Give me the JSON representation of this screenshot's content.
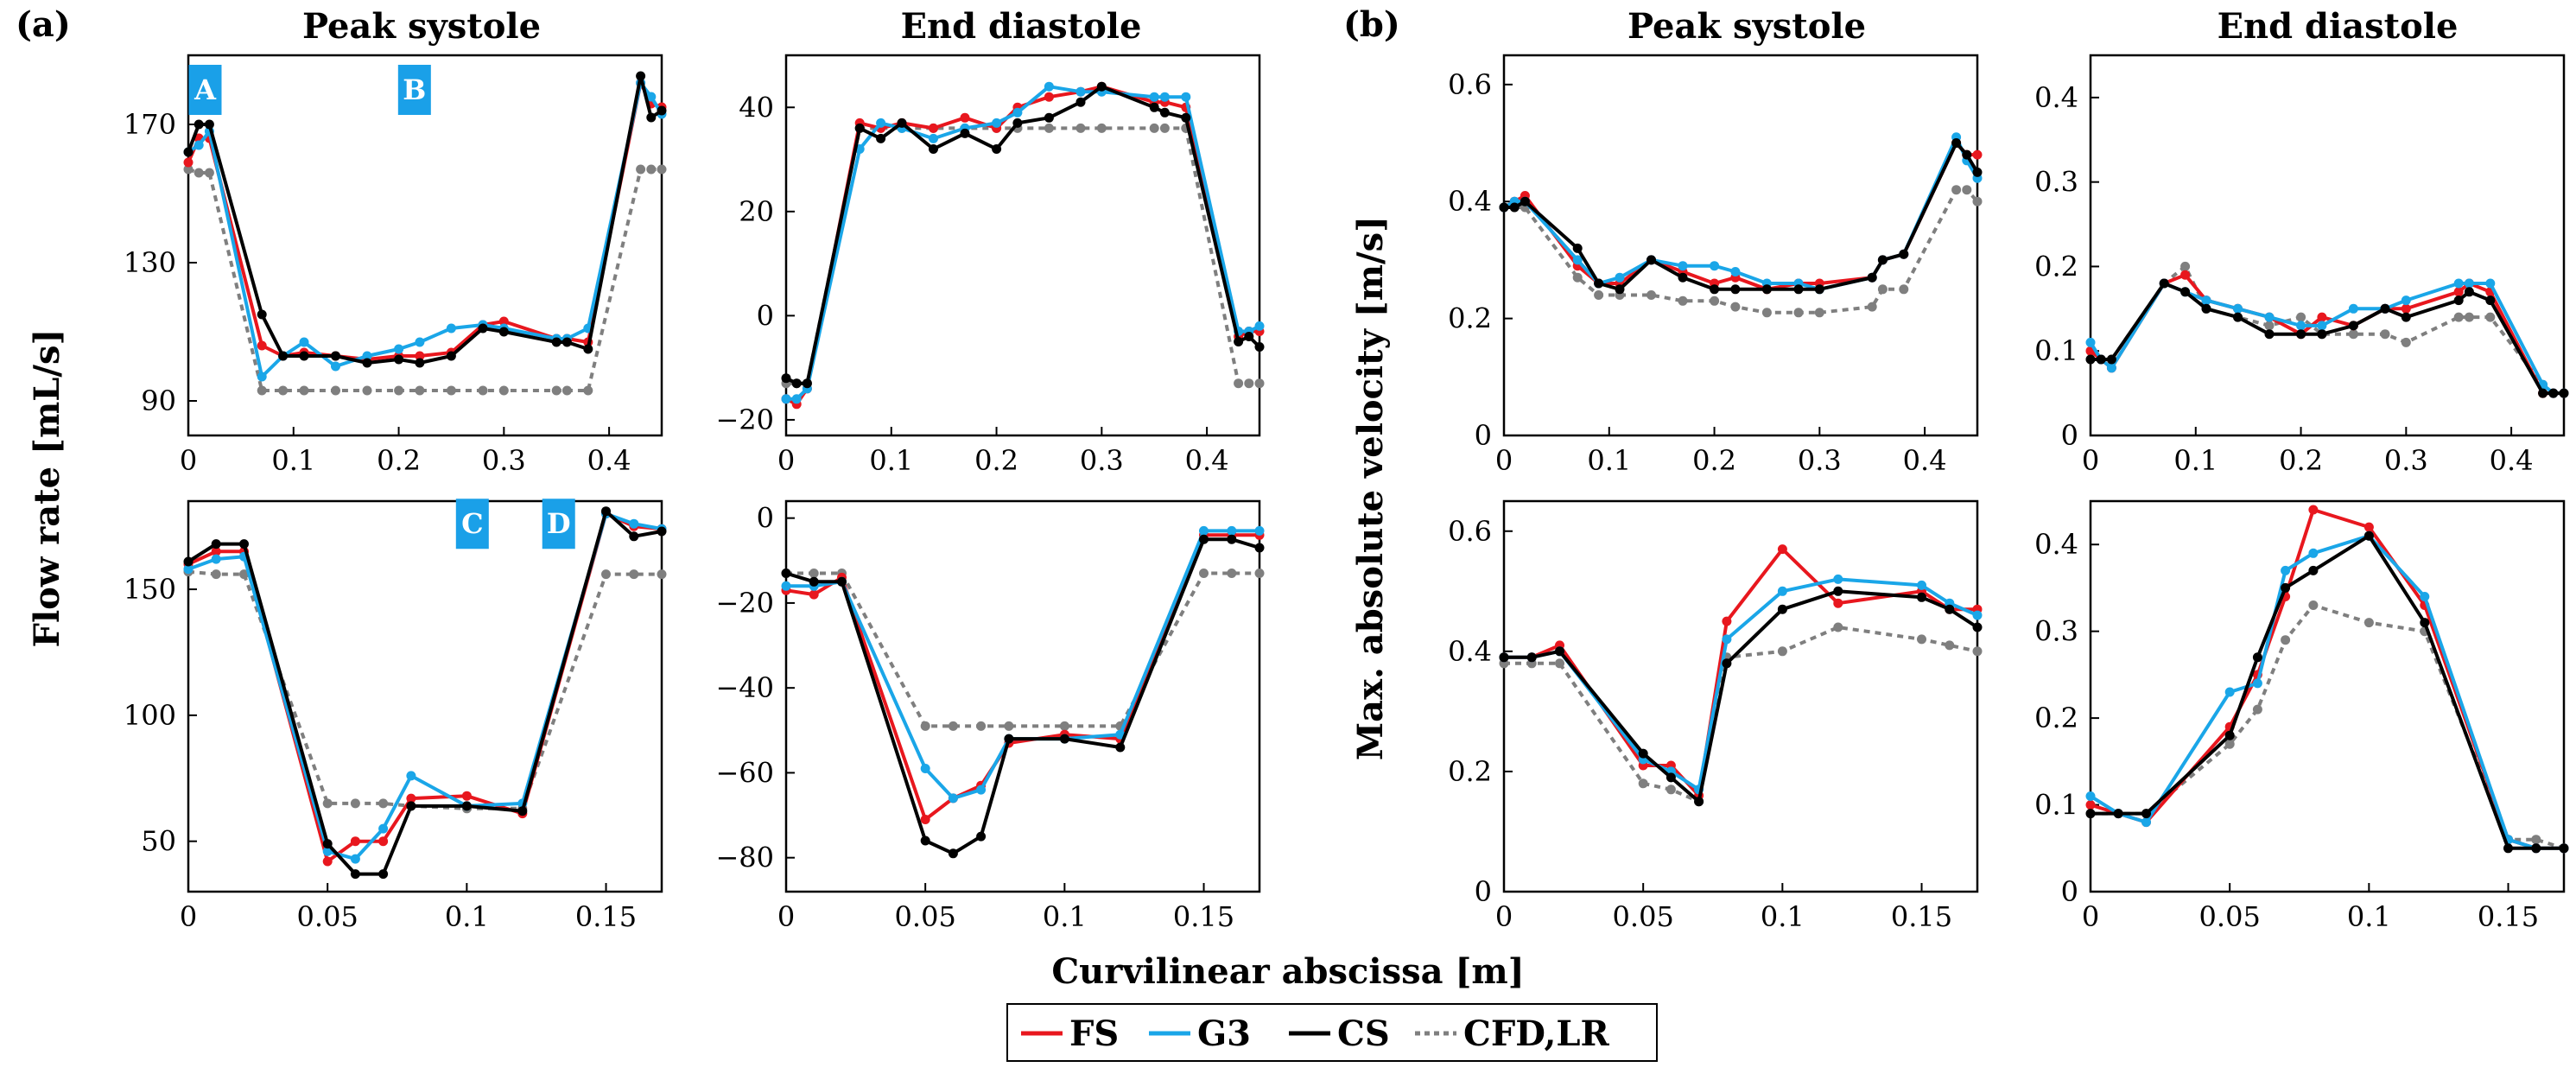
{
  "panel_labels": [
    "(a)",
    "(b)"
  ],
  "col_titles": [
    "Peak systole",
    "End diastole",
    "Peak systole",
    "End diastole"
  ],
  "ylabel_a": "Flow rate [mL/s]",
  "ylabel_b": "Max. absolute velocity [m/s]",
  "xlabel": "Curvilinear abscissa [m]",
  "colors": {
    "FS": "#e8171e",
    "G3": "#1aa6e8",
    "CS": "#000000",
    "CFD,LR": "#7f7f7f",
    "badge": "#1aa0e8"
  },
  "legend": [
    "FS",
    "G3",
    "CS",
    "CFD,LR"
  ],
  "chart_data": [
    {
      "id": "a-ps-top",
      "type": "line",
      "title": "Peak systole",
      "xlim": [
        0,
        0.45
      ],
      "ylim": [
        80,
        190
      ],
      "xticks": [
        0,
        0.1,
        0.2,
        0.3,
        0.4
      ],
      "xtick_labels": [
        "0",
        "0.1",
        "0.2",
        "0.3",
        "0.4"
      ],
      "yticks": [
        90,
        130,
        170
      ],
      "ytick_labels": [
        "90",
        "130",
        "170"
      ],
      "annotations": [
        {
          "text": "A",
          "x": 0.016,
          "y": 180
        },
        {
          "text": "B",
          "x": 0.215,
          "y": 180
        }
      ],
      "x": [
        0,
        0.01,
        0.02,
        0.07,
        0.09,
        0.11,
        0.14,
        0.17,
        0.2,
        0.22,
        0.25,
        0.28,
        0.3,
        0.35,
        0.36,
        0.38,
        0.43,
        0.44,
        0.45
      ],
      "series": [
        {
          "name": "FS",
          "values": [
            159,
            166,
            166,
            106,
            103,
            104,
            103,
            102,
            103,
            103,
            104,
            112,
            113,
            108,
            108,
            107,
            182,
            176,
            175
          ]
        },
        {
          "name": "G3",
          "values": [
            162,
            164,
            168,
            97,
            103,
            107,
            100,
            103,
            105,
            107,
            111,
            112,
            111,
            108,
            108,
            111,
            182,
            178,
            173
          ]
        },
        {
          "name": "CS",
          "values": [
            162,
            170,
            170,
            115,
            103,
            103,
            103,
            101,
            102,
            101,
            103,
            111,
            110,
            107,
            107,
            105,
            184,
            172,
            174
          ]
        },
        {
          "name": "CFD,LR",
          "values": [
            157,
            156,
            156,
            93,
            93,
            93,
            93,
            93,
            93,
            93,
            93,
            93,
            93,
            93,
            93,
            93,
            157,
            157,
            157
          ]
        }
      ]
    },
    {
      "id": "a-ed-top",
      "type": "line",
      "title": "End diastole",
      "xlim": [
        0,
        0.45
      ],
      "ylim": [
        -23,
        50
      ],
      "xticks": [
        0,
        0.1,
        0.2,
        0.3,
        0.4
      ],
      "xtick_labels": [
        "0",
        "0.1",
        "0.2",
        "0.3",
        "0.4"
      ],
      "yticks": [
        -20,
        0,
        20,
        40
      ],
      "ytick_labels": [
        "−20",
        "0",
        "20",
        "40"
      ],
      "x": [
        0,
        0.01,
        0.02,
        0.07,
        0.09,
        0.11,
        0.14,
        0.17,
        0.2,
        0.22,
        0.25,
        0.28,
        0.3,
        0.35,
        0.36,
        0.38,
        0.43,
        0.44,
        0.45
      ],
      "series": [
        {
          "name": "FS",
          "values": [
            -16,
            -17,
            -14,
            37,
            36,
            37,
            36,
            38,
            36,
            40,
            42,
            43,
            44,
            41,
            41,
            40,
            -4,
            -3,
            -3
          ]
        },
        {
          "name": "G3",
          "values": [
            -16,
            -16,
            -14,
            32,
            37,
            36,
            34,
            36,
            37,
            39,
            44,
            43,
            43,
            42,
            42,
            42,
            -3,
            -3,
            -2
          ]
        },
        {
          "name": "CS",
          "values": [
            -12,
            -13,
            -13,
            36,
            34,
            37,
            32,
            35,
            32,
            37,
            38,
            41,
            44,
            40,
            39,
            38,
            -5,
            -4,
            -6
          ]
        },
        {
          "name": "CFD,LR",
          "values": [
            -13,
            -13,
            -13,
            36,
            36,
            36,
            36,
            36,
            36,
            36,
            36,
            36,
            36,
            36,
            36,
            36,
            -13,
            -13,
            -13
          ]
        }
      ]
    },
    {
      "id": "b-ps-top",
      "type": "line",
      "title": "Peak systole",
      "xlim": [
        0,
        0.45
      ],
      "ylim": [
        0,
        0.65
      ],
      "xticks": [
        0,
        0.1,
        0.2,
        0.3,
        0.4
      ],
      "xtick_labels": [
        "0",
        "0.1",
        "0.2",
        "0.3",
        "0.4"
      ],
      "yticks": [
        0,
        0.2,
        0.4,
        0.6
      ],
      "ytick_labels": [
        "0",
        "0.2",
        "0.4",
        "0.6"
      ],
      "x": [
        0,
        0.01,
        0.02,
        0.07,
        0.09,
        0.11,
        0.14,
        0.17,
        0.2,
        0.22,
        0.25,
        0.28,
        0.3,
        0.35,
        0.36,
        0.38,
        0.43,
        0.44,
        0.45
      ],
      "series": [
        {
          "name": "FS",
          "values": [
            0.39,
            0.4,
            0.41,
            0.29,
            0.26,
            0.26,
            0.3,
            0.28,
            0.26,
            0.27,
            0.25,
            0.26,
            0.26,
            0.27,
            0.3,
            0.31,
            0.5,
            0.48,
            0.48
          ]
        },
        {
          "name": "G3",
          "values": [
            0.39,
            0.4,
            0.4,
            0.3,
            0.26,
            0.27,
            0.3,
            0.29,
            0.29,
            0.28,
            0.26,
            0.26,
            0.25,
            0.27,
            0.3,
            0.31,
            0.51,
            0.47,
            0.44
          ]
        },
        {
          "name": "CS",
          "values": [
            0.39,
            0.39,
            0.4,
            0.32,
            0.26,
            0.25,
            0.3,
            0.27,
            0.25,
            0.25,
            0.25,
            0.25,
            0.25,
            0.27,
            0.3,
            0.31,
            0.5,
            0.48,
            0.45
          ]
        },
        {
          "name": "CFD,LR",
          "values": [
            0.39,
            0.39,
            0.39,
            0.27,
            0.24,
            0.24,
            0.24,
            0.23,
            0.23,
            0.22,
            0.21,
            0.21,
            0.21,
            0.22,
            0.25,
            0.25,
            0.42,
            0.42,
            0.4
          ]
        }
      ]
    },
    {
      "id": "b-ed-top",
      "type": "line",
      "title": "End diastole",
      "xlim": [
        0,
        0.45
      ],
      "ylim": [
        0,
        0.45
      ],
      "xticks": [
        0,
        0.1,
        0.2,
        0.3,
        0.4
      ],
      "xtick_labels": [
        "0",
        "0.1",
        "0.2",
        "0.3",
        "0.4"
      ],
      "yticks": [
        0,
        0.1,
        0.2,
        0.3,
        0.4
      ],
      "ytick_labels": [
        "0",
        "0.1",
        "0.2",
        "0.3",
        "0.4"
      ],
      "x": [
        0,
        0.01,
        0.02,
        0.07,
        0.09,
        0.11,
        0.14,
        0.17,
        0.2,
        0.22,
        0.25,
        0.28,
        0.3,
        0.35,
        0.36,
        0.38,
        0.43,
        0.44,
        0.45
      ],
      "series": [
        {
          "name": "FS",
          "values": [
            0.1,
            0.09,
            0.08,
            0.18,
            0.19,
            0.16,
            0.15,
            0.14,
            0.12,
            0.14,
            0.13,
            0.15,
            0.15,
            0.17,
            0.18,
            0.17,
            0.05,
            0.05,
            0.05
          ]
        },
        {
          "name": "G3",
          "values": [
            0.11,
            0.09,
            0.08,
            0.18,
            0.17,
            0.16,
            0.15,
            0.14,
            0.13,
            0.13,
            0.15,
            0.15,
            0.16,
            0.18,
            0.18,
            0.18,
            0.06,
            0.05,
            0.05
          ]
        },
        {
          "name": "CS",
          "values": [
            0.09,
            0.09,
            0.09,
            0.18,
            0.17,
            0.15,
            0.14,
            0.12,
            0.12,
            0.12,
            0.13,
            0.15,
            0.14,
            0.16,
            0.17,
            0.16,
            0.05,
            0.05,
            0.05
          ]
        },
        {
          "name": "CFD,LR",
          "values": [
            0.09,
            0.09,
            0.09,
            0.18,
            0.2,
            0.15,
            0.14,
            0.13,
            0.14,
            0.12,
            0.12,
            0.12,
            0.11,
            0.14,
            0.14,
            0.14,
            0.06,
            0.05,
            0.05
          ]
        }
      ]
    },
    {
      "id": "a-ps-bot",
      "type": "line",
      "title": "Peak systole",
      "xlim": [
        0,
        0.17
      ],
      "ylim": [
        30,
        185
      ],
      "xticks": [
        0,
        0.05,
        0.1,
        0.15
      ],
      "xtick_labels": [
        "0",
        "0.05",
        "0.1",
        "0.15"
      ],
      "yticks": [
        50,
        100,
        150
      ],
      "ytick_labels": [
        "50",
        "100",
        "150"
      ],
      "annotations": [
        {
          "text": "C",
          "x": 0.102,
          "y": 176
        },
        {
          "text": "D",
          "x": 0.133,
          "y": 176
        }
      ],
      "x": [
        0,
        0.01,
        0.02,
        0.05,
        0.06,
        0.07,
        0.08,
        0.1,
        0.12,
        0.15,
        0.16,
        0.17
      ],
      "series": [
        {
          "name": "FS",
          "values": [
            160,
            165,
            165,
            42,
            50,
            50,
            67,
            68,
            61,
            180,
            175,
            174
          ]
        },
        {
          "name": "G3",
          "values": [
            158,
            162,
            163,
            46,
            43,
            55,
            76,
            64,
            65,
            180,
            176,
            174
          ]
        },
        {
          "name": "CS",
          "values": [
            161,
            168,
            168,
            49,
            37,
            37,
            64,
            64,
            62,
            181,
            171,
            173
          ]
        },
        {
          "name": "CFD,LR",
          "values": [
            157,
            156,
            156,
            65,
            65,
            65,
            64,
            63,
            63,
            156,
            156,
            156
          ]
        }
      ]
    },
    {
      "id": "a-ed-bot",
      "type": "line",
      "title": "End diastole",
      "xlim": [
        0,
        0.17
      ],
      "ylim": [
        -88,
        4
      ],
      "xticks": [
        0,
        0.05,
        0.1,
        0.15
      ],
      "xtick_labels": [
        "0",
        "0.05",
        "0.1",
        "0.15"
      ],
      "yticks": [
        -80,
        -60,
        -40,
        -20,
        0
      ],
      "ytick_labels": [
        "−80",
        "−60",
        "−40",
        "−20",
        "0"
      ],
      "x": [
        0,
        0.01,
        0.02,
        0.05,
        0.06,
        0.07,
        0.08,
        0.1,
        0.12,
        0.15,
        0.16,
        0.17
      ],
      "series": [
        {
          "name": "FS",
          "values": [
            -17,
            -18,
            -14,
            -71,
            -66,
            -63,
            -53,
            -51,
            -52,
            -4,
            -4,
            -4
          ]
        },
        {
          "name": "G3",
          "values": [
            -16,
            -16,
            -15,
            -59,
            -66,
            -64,
            -52,
            -52,
            -51,
            -3,
            -3,
            -3
          ]
        },
        {
          "name": "CS",
          "values": [
            -13,
            -15,
            -15,
            -76,
            -79,
            -75,
            -52,
            -52,
            -54,
            -5,
            -5,
            -7
          ]
        },
        {
          "name": "CFD,LR",
          "values": [
            -13,
            -13,
            -13,
            -49,
            -49,
            -49,
            -49,
            -49,
            -49,
            -13,
            -13,
            -13
          ]
        }
      ]
    },
    {
      "id": "b-ps-bot",
      "type": "line",
      "title": "Peak systole",
      "xlim": [
        0,
        0.17
      ],
      "ylim": [
        0,
        0.65
      ],
      "xticks": [
        0,
        0.05,
        0.1,
        0.15
      ],
      "xtick_labels": [
        "0",
        "0.05",
        "0.1",
        "0.15"
      ],
      "yticks": [
        0,
        0.2,
        0.4,
        0.6
      ],
      "ytick_labels": [
        "0",
        "0.2",
        "0.4",
        "0.6"
      ],
      "x": [
        0,
        0.01,
        0.02,
        0.05,
        0.06,
        0.07,
        0.08,
        0.1,
        0.12,
        0.15,
        0.16,
        0.17
      ],
      "series": [
        {
          "name": "FS",
          "values": [
            0.39,
            0.39,
            0.41,
            0.21,
            0.21,
            0.16,
            0.45,
            0.57,
            0.48,
            0.5,
            0.47,
            0.47
          ]
        },
        {
          "name": "G3",
          "values": [
            0.39,
            0.39,
            0.4,
            0.22,
            0.2,
            0.17,
            0.42,
            0.5,
            0.52,
            0.51,
            0.48,
            0.46
          ]
        },
        {
          "name": "CS",
          "values": [
            0.39,
            0.39,
            0.4,
            0.23,
            0.19,
            0.15,
            0.38,
            0.47,
            0.5,
            0.49,
            0.47,
            0.44
          ]
        },
        {
          "name": "CFD,LR",
          "values": [
            0.38,
            0.38,
            0.38,
            0.18,
            0.17,
            0.15,
            0.39,
            0.4,
            0.44,
            0.42,
            0.41,
            0.4
          ]
        }
      ]
    },
    {
      "id": "b-ed-bot",
      "type": "line",
      "title": "End diastole",
      "xlim": [
        0,
        0.17
      ],
      "ylim": [
        0,
        0.45
      ],
      "xticks": [
        0,
        0.05,
        0.1,
        0.15
      ],
      "xtick_labels": [
        "0",
        "0.05",
        "0.1",
        "0.15"
      ],
      "yticks": [
        0,
        0.1,
        0.2,
        0.3,
        0.4
      ],
      "ytick_labels": [
        "0",
        "0.1",
        "0.2",
        "0.3",
        "0.4"
      ],
      "x": [
        0,
        0.01,
        0.02,
        0.05,
        0.06,
        0.07,
        0.08,
        0.1,
        0.12,
        0.15,
        0.16,
        0.17
      ],
      "series": [
        {
          "name": "FS",
          "values": [
            0.1,
            0.09,
            0.08,
            0.19,
            0.25,
            0.34,
            0.44,
            0.42,
            0.33,
            0.06,
            0.05,
            0.05
          ]
        },
        {
          "name": "G3",
          "values": [
            0.11,
            0.09,
            0.08,
            0.23,
            0.24,
            0.37,
            0.39,
            0.41,
            0.34,
            0.06,
            0.05,
            0.05
          ]
        },
        {
          "name": "CS",
          "values": [
            0.09,
            0.09,
            0.09,
            0.18,
            0.27,
            0.35,
            0.37,
            0.41,
            0.31,
            0.05,
            0.05,
            0.05
          ]
        },
        {
          "name": "CFD,LR",
          "values": [
            0.09,
            0.09,
            0.09,
            0.17,
            0.21,
            0.29,
            0.33,
            0.31,
            0.3,
            0.06,
            0.06,
            0.05
          ]
        }
      ]
    }
  ]
}
